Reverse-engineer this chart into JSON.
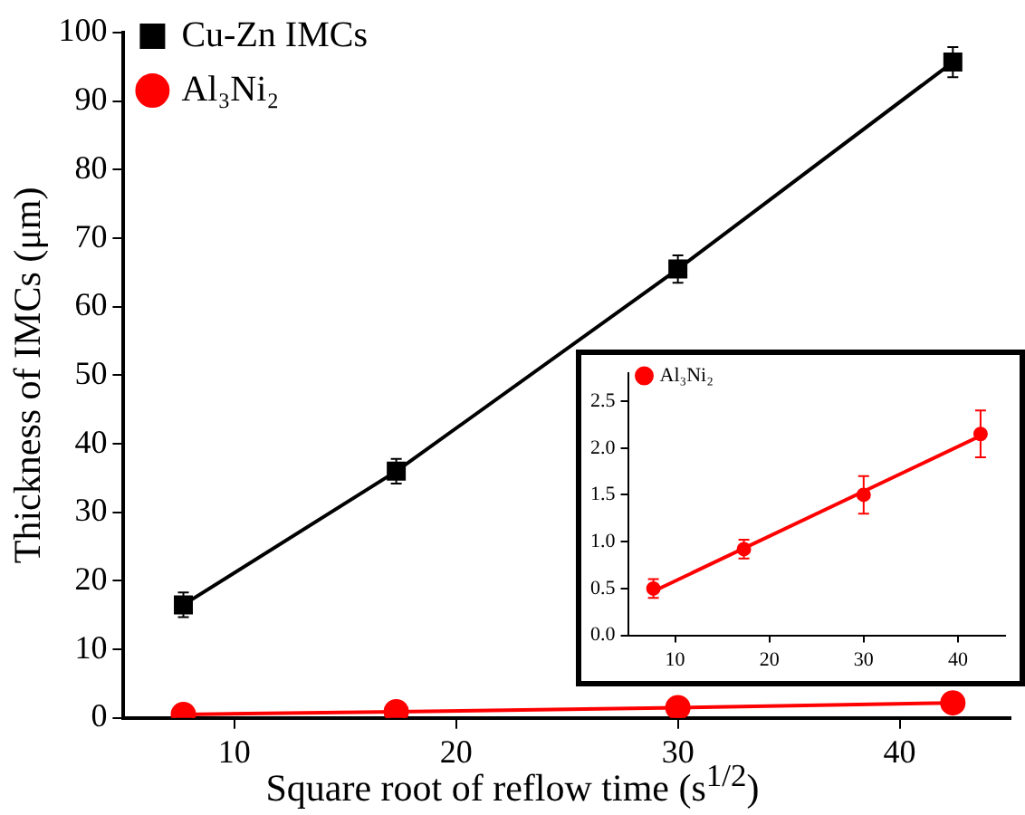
{
  "chart_data": [
    {
      "type": "line",
      "xlabel": "Square root of reflow time (s$^{1/2}$)",
      "ylabel": "Thickness of IMCs (μm)",
      "xlim": [
        5,
        45
      ],
      "xticks": [
        10,
        20,
        30,
        40
      ],
      "ylim": [
        0,
        100
      ],
      "yticks": [
        0,
        10,
        20,
        30,
        40,
        50,
        60,
        70,
        80,
        90,
        100
      ],
      "grid": false,
      "legend": "top left",
      "series": [
        {
          "name": "Cu-Zn IMCs",
          "color": "#000000",
          "marker": "square",
          "x": [
            7.7,
            17.3,
            30,
            42.4
          ],
          "values": [
            16.5,
            36,
            65.5,
            95.7
          ],
          "errors": [
            1.8,
            1.8,
            2,
            2.2
          ]
        },
        {
          "name": "Al₃Ni₂",
          "color": "#ff0000",
          "marker": "circle",
          "x": [
            7.7,
            17.3,
            30,
            42.4
          ],
          "values": [
            0.5,
            0.9,
            1.5,
            2.2
          ]
        }
      ]
    },
    {
      "type": "scatter",
      "xlim": [
        5,
        45
      ],
      "xticks": [
        10,
        20,
        30,
        40
      ],
      "ylim": [
        0,
        2.8
      ],
      "yticks": [
        {
          "value": 0,
          "label": "0.0"
        },
        0.5,
        {
          "value": 1,
          "label": "1.0"
        },
        1.5,
        {
          "value": 2,
          "label": "2.0"
        },
        2.5
      ],
      "grid": false,
      "legend": "top left",
      "marker": "circle",
      "series": [
        {
          "name": "Al₃Ni₂",
          "color": "#ff0000",
          "x": [
            7.7,
            17.3,
            30,
            42.4
          ],
          "values": [
            0.5,
            0.92,
            1.5,
            2.15
          ],
          "errors": [
            0.1,
            0.1,
            0.2,
            0.25
          ]
        },
        {
          "type": "line",
          "color": "#ff0000",
          "marker": "none",
          "x": [
            7.7,
            42.4
          ],
          "values": [
            0.47,
            2.13
          ]
        }
      ]
    }
  ]
}
